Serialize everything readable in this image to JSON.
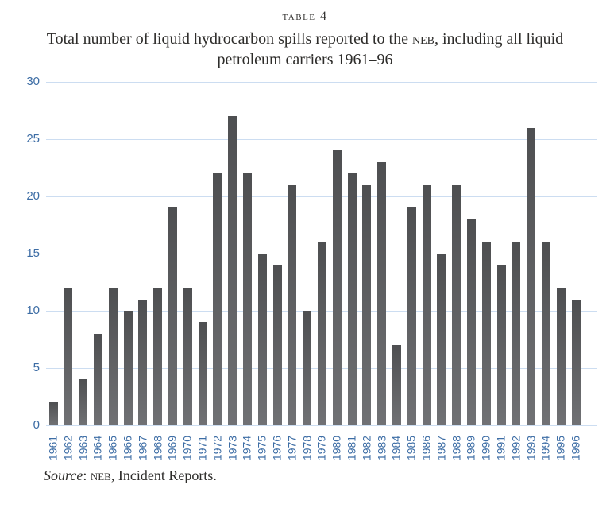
{
  "header": {
    "table_label": "table 4",
    "subtitle_line1_pre": "Total number of liquid hydrocarbon spills reported to the ",
    "subtitle_line1_smallcaps": "neb",
    "subtitle_line1_post": ", including all liquid",
    "subtitle_line2": "petroleum carriers 1961–96"
  },
  "source_note": {
    "label_italic": "Source",
    "separator": ": ",
    "smallcaps": "neb",
    "rest": ", Incident Reports."
  },
  "chart_data": {
    "type": "bar",
    "title": "Total number of liquid hydrocarbon spills reported to the NEB, including all liquid petroleum carriers 1961–96",
    "categories": [
      "1961",
      "1962",
      "1963",
      "1964",
      "1965",
      "1966",
      "1967",
      "1968",
      "1969",
      "1970",
      "1971",
      "1972",
      "1973",
      "1974",
      "1975",
      "1976",
      "1977",
      "1978",
      "1979",
      "1980",
      "1981",
      "1982",
      "1983",
      "1984",
      "1985",
      "1986",
      "1987",
      "1988",
      "1989",
      "1990",
      "1991",
      "1992",
      "1993",
      "1994",
      "1995",
      "1996"
    ],
    "values": [
      2,
      12,
      4,
      8,
      12,
      10,
      11,
      12,
      19,
      12,
      9,
      22,
      27,
      22,
      15,
      14,
      21,
      10,
      16,
      24,
      22,
      21,
      23,
      7,
      19,
      21,
      15,
      21,
      18,
      16,
      14,
      16,
      26,
      16,
      12,
      11
    ],
    "xlabel": "",
    "ylabel": "",
    "ylim": [
      0,
      30
    ],
    "yticks": [
      0,
      5,
      10,
      15,
      20,
      25,
      30
    ],
    "grid": true,
    "legend": "none",
    "colors": {
      "bar_gradient_top": "#4e4f51",
      "bar_gradient_bottom": "#707174",
      "gridline": "#ccddf1",
      "axis_label_blue": "#3d6da5",
      "title_text": "#2e2d2b"
    }
  }
}
